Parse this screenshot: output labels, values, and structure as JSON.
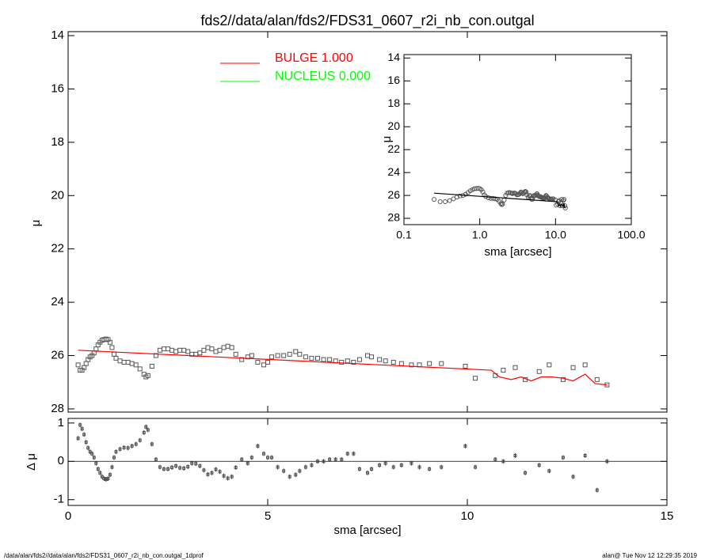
{
  "chart_data": [
    {
      "type": "scatter",
      "title": "fds2//data/alan/fds2/FDS31_0607_r2i_nb_con.outgal",
      "ylabel": "μ",
      "xlim": [
        0,
        15
      ],
      "ylim": [
        28.12,
        13.85
      ],
      "yticks": [
        14,
        16,
        18,
        20,
        22,
        24,
        26,
        28
      ],
      "marker_color": "#555555",
      "x": [
        0.25,
        0.3,
        0.35,
        0.4,
        0.45,
        0.5,
        0.55,
        0.6,
        0.65,
        0.7,
        0.75,
        0.8,
        0.85,
        0.9,
        0.95,
        1.0,
        1.05,
        1.1,
        1.15,
        1.2,
        1.3,
        1.4,
        1.5,
        1.6,
        1.7,
        1.8,
        1.9,
        1.95,
        2.0,
        2.1,
        2.2,
        2.3,
        2.4,
        2.5,
        2.6,
        2.7,
        2.8,
        2.9,
        3.0,
        3.1,
        3.2,
        3.3,
        3.4,
        3.5,
        3.6,
        3.7,
        3.8,
        3.9,
        4.0,
        4.1,
        4.2,
        4.35,
        4.5,
        4.6,
        4.75,
        4.9,
        5.0,
        5.1,
        5.25,
        5.4,
        5.55,
        5.7,
        5.8,
        5.95,
        6.1,
        6.25,
        6.4,
        6.55,
        6.7,
        6.85,
        7.0,
        7.15,
        7.3,
        7.5,
        7.6,
        7.8,
        7.95,
        8.15,
        8.35,
        8.6,
        8.8,
        9.05,
        9.35,
        9.95,
        10.2,
        10.7,
        10.9,
        11.2,
        11.45,
        11.8,
        12.05,
        12.4,
        12.65,
        12.95,
        13.25,
        13.5
      ],
      "values": [
        26.35,
        26.55,
        26.55,
        26.45,
        26.3,
        26.15,
        26.05,
        26.0,
        25.9,
        25.75,
        25.6,
        25.5,
        25.42,
        25.4,
        25.38,
        25.4,
        25.5,
        25.7,
        25.95,
        26.1,
        26.2,
        26.25,
        26.25,
        26.3,
        26.35,
        26.5,
        26.7,
        26.8,
        26.75,
        26.4,
        26.0,
        25.8,
        25.75,
        25.75,
        25.8,
        25.85,
        25.8,
        25.8,
        25.85,
        25.95,
        25.95,
        25.9,
        25.8,
        25.7,
        25.75,
        25.85,
        25.8,
        25.7,
        25.65,
        25.7,
        25.95,
        26.15,
        26.05,
        26.0,
        26.25,
        26.35,
        26.25,
        26.05,
        26.0,
        26.0,
        25.95,
        25.85,
        25.95,
        26.05,
        26.1,
        26.1,
        26.15,
        26.15,
        26.2,
        26.25,
        26.2,
        26.25,
        26.15,
        26.0,
        26.05,
        26.15,
        26.2,
        26.25,
        26.3,
        26.35,
        26.35,
        26.3,
        26.3,
        26.4,
        26.85,
        26.75,
        26.55,
        26.45,
        26.9,
        26.6,
        26.35,
        26.9,
        26.45,
        26.35,
        26.9,
        27.1
      ],
      "series": [
        {
          "name": "BULGE  1.000",
          "color": "#ff0000",
          "x": [
            0.25,
            10.6,
            10.8,
            11.1,
            11.35,
            11.6,
            11.85,
            12.1,
            12.4,
            12.65,
            12.95,
            13.2,
            13.5
          ],
          "values": [
            25.8,
            26.55,
            26.8,
            26.9,
            26.8,
            26.95,
            26.8,
            26.8,
            26.85,
            26.95,
            26.7,
            27.05,
            27.1
          ]
        },
        {
          "name": "NUCLEUS  0.000",
          "color": "#00ff00",
          "x": [],
          "values": []
        }
      ]
    },
    {
      "type": "errorbar",
      "xlabel": "sma [arcsec]",
      "ylabel": "Δ μ",
      "xlim": [
        0,
        15
      ],
      "ylim": [
        -1.15,
        1.12
      ],
      "xticks": [
        0,
        5,
        10,
        15
      ],
      "yticks": [
        -1,
        0,
        1
      ],
      "error": 0.06,
      "marker_color": "#555555",
      "x": [
        0.25,
        0.3,
        0.35,
        0.4,
        0.45,
        0.5,
        0.55,
        0.6,
        0.65,
        0.7,
        0.75,
        0.8,
        0.85,
        0.9,
        0.95,
        1.0,
        1.05,
        1.1,
        1.15,
        1.2,
        1.3,
        1.4,
        1.5,
        1.6,
        1.7,
        1.8,
        1.9,
        1.95,
        2.0,
        2.1,
        2.2,
        2.3,
        2.4,
        2.5,
        2.6,
        2.7,
        2.8,
        2.9,
        3.0,
        3.1,
        3.2,
        3.3,
        3.4,
        3.5,
        3.6,
        3.7,
        3.8,
        3.9,
        4.0,
        4.1,
        4.2,
        4.35,
        4.5,
        4.6,
        4.75,
        4.9,
        5.0,
        5.1,
        5.25,
        5.4,
        5.55,
        5.7,
        5.8,
        5.95,
        6.1,
        6.25,
        6.4,
        6.55,
        6.7,
        6.85,
        7.0,
        7.15,
        7.3,
        7.5,
        7.6,
        7.8,
        7.95,
        8.15,
        8.35,
        8.6,
        8.8,
        9.05,
        9.35,
        9.95,
        10.2,
        10.7,
        10.9,
        11.2,
        11.45,
        11.8,
        12.05,
        12.4,
        12.65,
        12.95,
        13.25,
        13.5
      ],
      "values": [
        0.6,
        0.95,
        0.85,
        0.7,
        0.5,
        0.35,
        0.25,
        0.2,
        0.1,
        -0.05,
        -0.2,
        -0.3,
        -0.4,
        -0.45,
        -0.47,
        -0.45,
        -0.35,
        -0.15,
        0.1,
        0.25,
        0.32,
        0.36,
        0.35,
        0.4,
        0.45,
        0.55,
        0.75,
        0.9,
        0.82,
        0.45,
        0.05,
        -0.15,
        -0.2,
        -0.2,
        -0.16,
        -0.12,
        -0.17,
        -0.18,
        -0.14,
        -0.05,
        -0.06,
        -0.12,
        -0.23,
        -0.34,
        -0.3,
        -0.21,
        -0.27,
        -0.38,
        -0.44,
        -0.4,
        -0.16,
        0.05,
        -0.05,
        0.1,
        0.4,
        0.2,
        0.1,
        0.1,
        -0.15,
        -0.25,
        -0.4,
        -0.35,
        -0.25,
        -0.15,
        -0.1,
        0.0,
        0.0,
        0.05,
        0.05,
        0.05,
        0.2,
        0.2,
        -0.2,
        -0.3,
        -0.2,
        -0.1,
        -0.05,
        -0.15,
        -0.1,
        -0.05,
        -0.15,
        -0.2,
        -0.15,
        0.4,
        -0.15,
        0.05,
        0.0,
        0.15,
        -0.3,
        -0.1,
        -0.25,
        0.1,
        -0.4,
        0.15,
        -0.75,
        0.0
      ]
    },
    {
      "type": "inset",
      "xlabel": "sma [arcsec]",
      "ylabel": "μ",
      "xlog": true,
      "xlim": [
        0.1,
        100
      ],
      "ylim": [
        28.55,
        13.7
      ],
      "xticks": [
        0.1,
        {
          "value": 1,
          "label": "1.0"
        },
        {
          "value": 10,
          "label": "10.0"
        },
        {
          "value": 100,
          "label": "100.0"
        }
      ],
      "yticks": [
        14,
        16,
        18,
        20,
        22,
        24,
        26,
        28
      ],
      "marker_color": "#555555",
      "line_color": "#000000"
    }
  ],
  "footer": {
    "left": "/data/alan/fds2//data/alan/fds2/FDS31_0607_r2i_nb_con.outgal_1dprof",
    "right": "alan@  Tue Nov 12 12:29:35 2019"
  }
}
